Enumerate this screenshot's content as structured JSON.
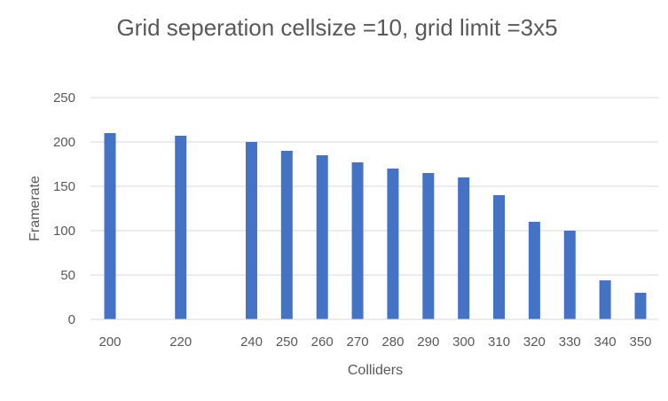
{
  "chart_data": {
    "type": "bar",
    "title": "Grid seperation cellsize =10, grid limit =3x5",
    "xlabel": "Colliders",
    "ylabel": "Framerate",
    "x": [
      200,
      220,
      240,
      250,
      260,
      270,
      280,
      290,
      300,
      310,
      320,
      330,
      340,
      350
    ],
    "values": [
      210,
      207,
      200,
      190,
      185,
      177,
      170,
      165,
      160,
      140,
      110,
      100,
      44,
      30
    ],
    "xlim": [
      200,
      350
    ],
    "ylim": [
      0,
      250
    ],
    "yticks": [
      0,
      50,
      100,
      150,
      200,
      250
    ],
    "grid": true,
    "legend": "none",
    "bar_color": "#4472c4"
  }
}
